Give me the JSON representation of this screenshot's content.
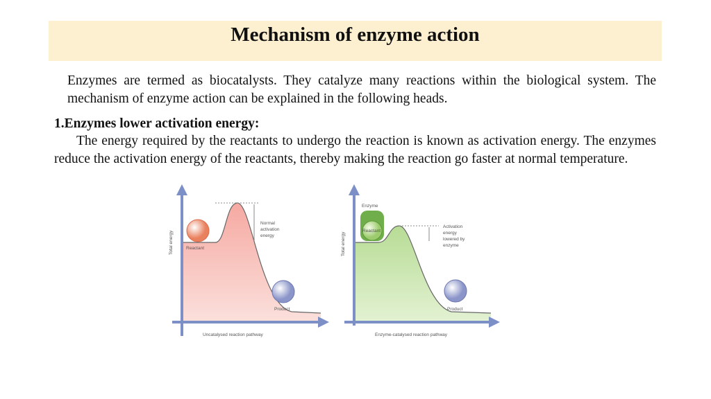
{
  "header": {
    "title": "Mechanism of enzyme action"
  },
  "intro": "Enzymes are termed as biocatalysts. They catalyze many reactions within the biological system. The mechanism of enzyme action can be explained in the following heads.",
  "section": {
    "heading": "1.Enzymes lower activation energy:",
    "text": "The energy required by the reactants to undergo the reaction is known as activation energy. The enzymes reduce the activation energy of the reactants, thereby making the reaction go faster at normal temperature."
  },
  "figure": {
    "left": {
      "y_axis": "Total energy",
      "reactant": "Reactant",
      "product": "Product",
      "note": [
        "Normal",
        "activation",
        "energy"
      ],
      "x_axis": "Uncatalysed reaction pathway"
    },
    "right": {
      "y_axis": "Total energy",
      "enzyme": "Enzyme",
      "reactant": "Reactant",
      "product": "Product",
      "note": [
        "Activation",
        "energy",
        "lowered by",
        "enzyme"
      ],
      "x_axis": "Enzyme-catalysed reaction pathway"
    }
  }
}
